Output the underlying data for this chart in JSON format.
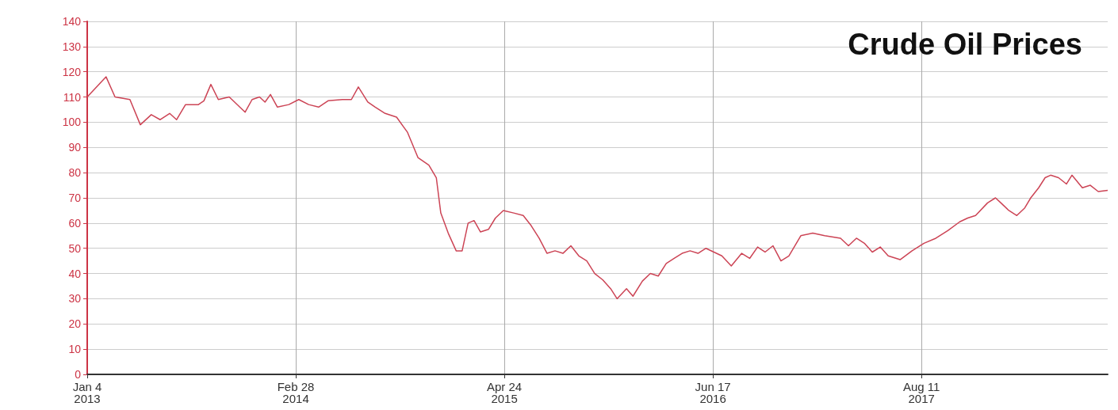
{
  "chart_data": {
    "type": "line",
    "title": "Crude Oil Prices",
    "x": [
      "2013-01-04",
      "2013-02-11",
      "2013-03-01",
      "2013-03-31",
      "2013-04-21",
      "2013-05-13",
      "2013-05-31",
      "2013-06-19",
      "2013-07-03",
      "2013-07-21",
      "2013-08-16",
      "2013-08-27",
      "2013-09-10",
      "2013-09-25",
      "2013-10-17",
      "2013-11-18",
      "2013-12-02",
      "2013-12-17",
      "2013-12-28",
      "2014-01-08",
      "2014-01-22",
      "2014-02-14",
      "2014-03-06",
      "2014-03-26",
      "2014-04-15",
      "2014-05-04",
      "2014-06-02",
      "2014-06-20",
      "2014-07-04",
      "2014-07-23",
      "2014-08-07",
      "2014-08-27",
      "2014-09-19",
      "2014-10-11",
      "2014-11-01",
      "2014-11-23",
      "2014-12-08",
      "2014-12-17",
      "2015-01-01",
      "2015-01-17",
      "2015-01-29",
      "2015-02-10",
      "2015-02-22",
      "2015-03-07",
      "2015-03-23",
      "2015-04-06",
      "2015-04-22",
      "2015-05-13",
      "2015-06-01",
      "2015-06-17",
      "2015-07-03",
      "2015-07-19",
      "2015-08-04",
      "2015-08-20",
      "2015-09-05",
      "2015-09-21",
      "2015-10-07",
      "2015-10-23",
      "2015-11-08",
      "2015-11-24",
      "2015-12-07",
      "2015-12-26",
      "2016-01-08",
      "2016-01-27",
      "2016-02-12",
      "2016-02-28",
      "2016-03-15",
      "2016-03-31",
      "2016-04-16",
      "2016-05-02",
      "2016-05-18",
      "2016-06-03",
      "2016-06-19",
      "2016-07-05",
      "2016-07-24",
      "2016-08-14",
      "2016-08-30",
      "2016-09-15",
      "2016-09-30",
      "2016-10-16",
      "2016-11-01",
      "2016-11-17",
      "2016-12-11",
      "2017-01-04",
      "2017-01-28",
      "2017-03-01",
      "2017-03-17",
      "2017-04-02",
      "2017-04-18",
      "2017-05-04",
      "2017-05-20",
      "2017-06-05",
      "2017-06-29",
      "2017-07-23",
      "2017-08-16",
      "2017-09-09",
      "2017-10-03",
      "2017-10-27",
      "2017-11-12",
      "2017-11-28",
      "2017-12-22",
      "2018-01-07",
      "2018-01-18",
      "2018-02-03",
      "2018-02-19",
      "2018-03-07",
      "2018-03-19",
      "2018-04-04",
      "2018-04-17",
      "2018-04-28",
      "2018-05-14",
      "2018-05-30",
      "2018-06-10",
      "2018-07-01",
      "2018-07-17",
      "2018-08-02",
      "2018-08-21"
    ],
    "series": [
      {
        "color": "#cc4455",
        "values": [
          110,
          118,
          110,
          109,
          99,
          103,
          101,
          103.5,
          101,
          107,
          107,
          108.5,
          115,
          109,
          110,
          104,
          109,
          110,
          108,
          111,
          106,
          107,
          109,
          107,
          106,
          108.5,
          109,
          109,
          114,
          108,
          106,
          103.5,
          102,
          96,
          86,
          83,
          78,
          64,
          56,
          49,
          49,
          60,
          61,
          56.5,
          57.5,
          62,
          65,
          64,
          63,
          59,
          54,
          48,
          49,
          48,
          51,
          47,
          45,
          40,
          37.5,
          34,
          30,
          34,
          31,
          37,
          40,
          39,
          44,
          46,
          48,
          49,
          48,
          50,
          48.5,
          47,
          43,
          48,
          46,
          50.5,
          48.5,
          51,
          45,
          47,
          55,
          56,
          55,
          54,
          51,
          54,
          52,
          48.5,
          50.5,
          47,
          45.5,
          49,
          52,
          54,
          57,
          60.5,
          62,
          63,
          68,
          70,
          68,
          65,
          63,
          66,
          70,
          74,
          78,
          79,
          78,
          75.5,
          79,
          74,
          75,
          72.5,
          73
        ]
      }
    ],
    "xlim": [
      "2013-01-04",
      "2018-08-21"
    ],
    "xticks": [
      {
        "value": "2013-01-04",
        "label": "Jan 4\n2013"
      },
      {
        "value": "2014-02-28",
        "label": "Feb 28\n2014"
      },
      {
        "value": "2015-04-24",
        "label": "Apr 24\n2015"
      },
      {
        "value": "2016-06-17",
        "label": "Jun 17\n2016"
      },
      {
        "value": "2017-08-11",
        "label": "Aug 11\n2017"
      }
    ],
    "ylim": [
      0,
      140
    ],
    "yticks": [
      0,
      10,
      20,
      30,
      40,
      50,
      60,
      70,
      80,
      90,
      100,
      110,
      120,
      130,
      140
    ],
    "grid": true,
    "marker": "none",
    "line_style": "solid"
  }
}
